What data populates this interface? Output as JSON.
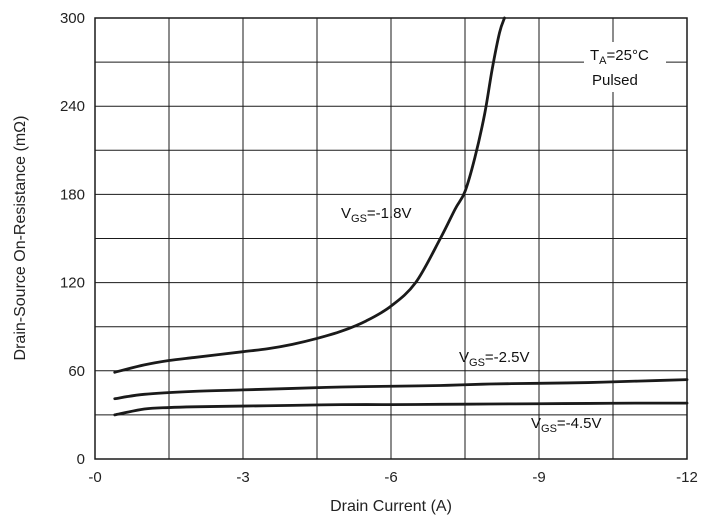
{
  "chart_data": {
    "type": "line",
    "title": "",
    "xlabel": "Drain Current (A)",
    "ylabel": "Drain-Source On-Resistance (mΩ)",
    "xlim": [
      0,
      -12
    ],
    "ylim": [
      0,
      300
    ],
    "xticks": [
      {
        "value": 0,
        "label": "-0"
      },
      {
        "value": -3,
        "label": "-3"
      },
      {
        "value": -6,
        "label": "-6"
      },
      {
        "value": -9,
        "label": "-9"
      },
      {
        "value": -12,
        "label": "-12"
      }
    ],
    "yticks": [
      {
        "value": 0,
        "label": "0"
      },
      {
        "value": 60,
        "label": "60"
      },
      {
        "value": 120,
        "label": "120"
      },
      {
        "value": 180,
        "label": "180"
      },
      {
        "value": 240,
        "label": "240"
      },
      {
        "value": 300,
        "label": "300"
      }
    ],
    "grid": true,
    "x_minor_step": 1.5,
    "y_minor_step": 30,
    "conditions": {
      "ta": {
        "main": "T",
        "sub": "A",
        "rest": "=25°C"
      },
      "pulsed": "Pulsed"
    },
    "series": [
      {
        "label": {
          "main": "V",
          "sub": "GS",
          "rest": "=-1.8V"
        },
        "x": [
          -0.4,
          -1.0,
          -1.5,
          -2.0,
          -2.5,
          -3.0,
          -3.5,
          -4.0,
          -4.5,
          -5.0,
          -5.5,
          -6.0,
          -6.5,
          -7.0,
          -7.3,
          -7.5,
          -7.7,
          -7.9,
          -8.05,
          -8.2,
          -8.3
        ],
        "y": [
          59,
          64,
          67,
          69,
          71,
          73,
          75,
          78,
          82,
          87,
          94,
          104,
          120,
          150,
          170,
          182,
          205,
          235,
          265,
          290,
          300
        ]
      },
      {
        "label": {
          "main": "V",
          "sub": "GS",
          "rest": "=-2.5V"
        },
        "x": [
          -0.4,
          -1.0,
          -2.0,
          -3.0,
          -4.0,
          -5.0,
          -6.0,
          -7.0,
          -8.0,
          -9.0,
          -10.0,
          -11.0,
          -12.0
        ],
        "y": [
          41,
          44,
          46,
          47,
          48,
          49,
          49.5,
          50,
          51,
          51.5,
          52,
          53,
          54
        ]
      },
      {
        "label": {
          "main": "V",
          "sub": "GS",
          "rest": "=-4.5V"
        },
        "x": [
          -0.4,
          -1.0,
          -1.5,
          -2.0,
          -3.0,
          -4.0,
          -5.0,
          -6.0,
          -7.0,
          -8.0,
          -9.0,
          -10.0,
          -11.0,
          -12.0
        ],
        "y": [
          30,
          34,
          35,
          35.5,
          36,
          36.5,
          37,
          37,
          37.2,
          37.4,
          37.6,
          37.8,
          38,
          38
        ]
      }
    ]
  }
}
